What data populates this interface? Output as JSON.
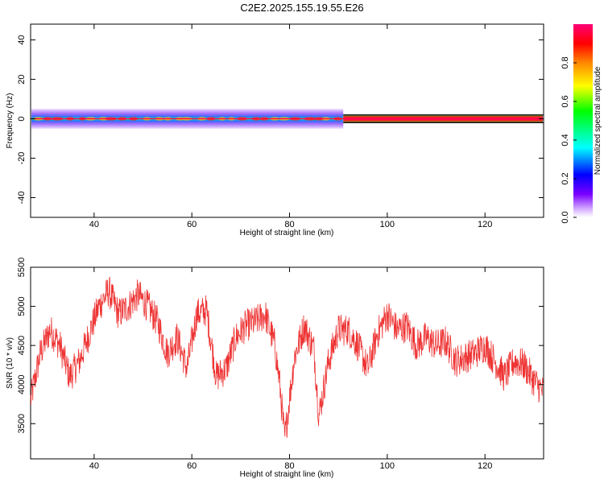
{
  "figure_title": "C2E2.2025.155.19.55.E26",
  "chart_data": [
    {
      "type": "heatmap",
      "title": "",
      "xlabel": "Height of straight line (km)",
      "ylabel": "Frequency (Hz)",
      "xlim": [
        27,
        132
      ],
      "ylim": [
        -50,
        48
      ],
      "xticks": [
        "40",
        "60",
        "80",
        "100",
        "120"
      ],
      "yticks": [
        "40",
        "20",
        "0",
        "-20",
        "-40"
      ],
      "colorbar": {
        "label": "Normalized spectral amplitude",
        "range": [
          0,
          1
        ],
        "ticks": [
          "0.0",
          "0.2",
          "0.4",
          "0.6",
          "0.8"
        ],
        "colormap": "rainbow (white-violet-blue-cyan-green-yellow-orange-red-magenta)"
      },
      "band": {
        "center_frequency_hz": 0,
        "half_width_hz_below_91km": 5,
        "half_width_hz_above_91km": 2,
        "transition_km": 91,
        "peak_frequency_hz": 0
      }
    },
    {
      "type": "line",
      "title": "",
      "xlabel": "Height of straight line (km)",
      "ylabel": "SNR (10 * v/v)",
      "xlim": [
        27,
        132
      ],
      "ylim": [
        3050,
        5500
      ],
      "xticks": [
        "40",
        "60",
        "80",
        "100",
        "120"
      ],
      "yticks": [
        "5500",
        "5000",
        "4500",
        "4000",
        "3500"
      ],
      "grid": false,
      "color": "#ee3333",
      "series": [
        {
          "x": [
            27,
            29,
            31,
            33,
            35,
            37,
            39,
            41,
            43,
            45,
            47,
            49,
            51,
            53,
            55,
            57,
            59,
            61,
            63,
            65,
            67,
            69,
            71,
            73,
            75,
            77,
            78,
            79,
            81,
            83,
            85,
            86,
            88,
            90,
            92,
            94,
            96,
            98,
            100,
            102,
            104,
            106,
            108,
            110,
            112,
            114,
            116,
            118,
            120,
            122,
            124,
            126,
            128,
            130,
            132
          ],
          "y": [
            3800,
            4400,
            4700,
            4500,
            4100,
            4300,
            4650,
            5000,
            5200,
            4900,
            5000,
            5150,
            5000,
            4800,
            4400,
            4600,
            4200,
            4900,
            4950,
            4100,
            4200,
            4600,
            4750,
            4800,
            4900,
            4500,
            4000,
            3300,
            4350,
            4750,
            4450,
            3600,
            4300,
            4700,
            4700,
            4500,
            4200,
            4650,
            4900,
            4700,
            4750,
            4500,
            4600,
            4500,
            4550,
            4300,
            4350,
            4400,
            4500,
            4300,
            4100,
            4300,
            4250,
            4050,
            3900
          ]
        }
      ]
    }
  ]
}
